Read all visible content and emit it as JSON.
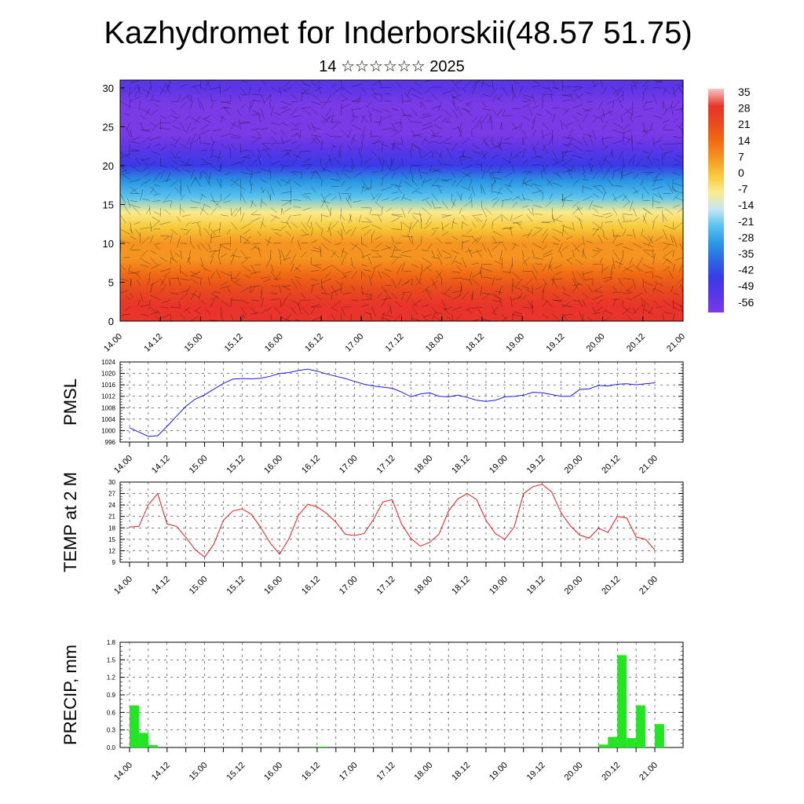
{
  "header": {
    "title": "Kazhydromet for Inderborskii(48.57 51.75)",
    "subtitle": "14 ☆☆☆☆☆☆ 2025"
  },
  "time_ticks": [
    "14.00",
    "14.12",
    "15.00",
    "15.12",
    "16.00",
    "16.12",
    "17.00",
    "17.12",
    "18.00",
    "18.12",
    "19.00",
    "19.12",
    "20.00",
    "20.12",
    "21.00"
  ],
  "chart_data": [
    {
      "type": "heatmap",
      "name": "vertical-section",
      "xlabel": "",
      "ylabel": "",
      "x_ticks": [
        "14.00",
        "14.12",
        "15.00",
        "15.12",
        "16.00",
        "16.12",
        "17.00",
        "17.12",
        "18.00",
        "18.12",
        "19.00",
        "19.12",
        "20.00",
        "20.12",
        "21.00"
      ],
      "y_ticks": [
        0,
        5,
        10,
        15,
        20,
        25,
        30
      ],
      "ylim": [
        0,
        31
      ],
      "colorbar": {
        "labels": [
          "35",
          "28",
          "21",
          "14",
          "7",
          "0",
          "-7",
          "-14",
          "-21",
          "-28",
          "-35",
          "-42",
          "-49",
          "-56"
        ],
        "colors": [
          "#f7c6c6",
          "#e8342a",
          "#e84a1e",
          "#f06a14",
          "#f59420",
          "#f7c838",
          "#fbeb8e",
          "#c6e6f4",
          "#58c2ee",
          "#2a96e2",
          "#2a66e2",
          "#3a3ae6",
          "#5a36e6",
          "#7a3ae6"
        ]
      },
      "levels": {
        "z": [
          0,
          2,
          4,
          6,
          8,
          10,
          12,
          14,
          16,
          18,
          20,
          22,
          24,
          26,
          28,
          30
        ],
        "profile_temp": [
          30,
          25,
          19,
          13,
          8,
          4,
          0,
          -8,
          -18,
          -30,
          -40,
          -50,
          -56,
          -58,
          -56,
          -52
        ]
      }
    },
    {
      "type": "line",
      "name": "pmsl",
      "ylabel": "PMSL",
      "ylim": [
        996,
        1024
      ],
      "y_ticks": [
        996,
        1000,
        1004,
        1008,
        1012,
        1016,
        1020,
        1024
      ],
      "x": [
        0,
        3,
        6,
        9,
        12,
        15,
        18,
        21,
        24,
        27,
        30,
        33,
        36,
        39,
        42,
        45,
        48,
        51,
        54,
        57,
        60,
        63,
        66,
        69,
        72,
        75,
        78,
        81,
        84,
        87,
        90,
        93,
        96,
        99,
        102,
        105,
        108,
        111,
        114,
        117,
        120,
        123,
        126,
        129,
        132,
        135,
        138,
        141,
        144,
        147,
        150,
        153,
        156,
        159,
        162,
        165,
        168
      ],
      "series": [
        {
          "color": "#1a1ae6",
          "values": [
            1001,
            999.5,
            998,
            998.2,
            1001.5,
            1005,
            1008.5,
            1011,
            1012.5,
            1014.5,
            1016.5,
            1018,
            1018.2,
            1018.1,
            1018.3,
            1019,
            1020,
            1020.3,
            1021,
            1021.5,
            1020.8,
            1019.8,
            1019,
            1018.2,
            1017.2,
            1016.2,
            1015.6,
            1015.2,
            1014.8,
            1013.5,
            1011.8,
            1012.8,
            1013.2,
            1012,
            1011.8,
            1012.4,
            1011.6,
            1010.6,
            1010.2,
            1010.6,
            1011.8,
            1012,
            1012.4,
            1013.4,
            1013.2,
            1012.6,
            1012,
            1012,
            1014.4,
            1014.6,
            1015.8,
            1015.6,
            1016.2,
            1016.4,
            1016,
            1016.4,
            1016.7
          ]
        }
      ]
    },
    {
      "type": "line",
      "name": "temp-2m",
      "ylabel": "TEMP at 2 M",
      "ylim": [
        9,
        30
      ],
      "y_ticks": [
        9,
        12,
        15,
        18,
        21,
        24,
        27,
        30
      ],
      "x": [
        0,
        3,
        6,
        9,
        12,
        15,
        18,
        21,
        24,
        27,
        30,
        33,
        36,
        39,
        42,
        45,
        48,
        51,
        54,
        57,
        60,
        63,
        66,
        69,
        72,
        75,
        78,
        81,
        84,
        87,
        90,
        93,
        96,
        99,
        102,
        105,
        108,
        111,
        114,
        117,
        120,
        123,
        126,
        129,
        132,
        135,
        138,
        141,
        144,
        147,
        150,
        153,
        156,
        159,
        162,
        165,
        168
      ],
      "series": [
        {
          "color": "#e61a1a",
          "values": [
            18.2,
            18.4,
            24,
            27,
            19,
            18.4,
            15.5,
            12.3,
            10.3,
            13.8,
            20,
            22.4,
            23,
            21.5,
            18,
            14,
            11.1,
            15.2,
            21.3,
            24.2,
            23.5,
            21.8,
            19.5,
            16.3,
            16,
            16.5,
            20.2,
            24.8,
            25.4,
            19,
            15.2,
            13.2,
            14.2,
            16.4,
            22.4,
            25.6,
            27,
            25.4,
            20,
            16.5,
            15,
            18.2,
            27,
            28.8,
            29.4,
            27.4,
            22,
            18.5,
            16.1,
            15.3,
            17.9,
            16.8,
            21,
            20.6,
            15.6,
            15,
            12.2
          ]
        }
      ]
    },
    {
      "type": "bar",
      "name": "precip",
      "ylabel": "PRECIP, mm",
      "ylim": [
        0,
        1.8
      ],
      "y_ticks": [
        "0.0",
        "0.3",
        "0.6",
        "0.9",
        "1.2",
        "1.5",
        "1.8"
      ],
      "x": [
        0,
        3,
        6,
        60,
        150,
        153,
        156,
        159,
        162,
        168
      ],
      "values": [
        0.72,
        0.25,
        0.04,
        0.015,
        0.05,
        0.18,
        1.58,
        0.16,
        0.72,
        0.4
      ],
      "bar_color": "#22e622"
    }
  ]
}
